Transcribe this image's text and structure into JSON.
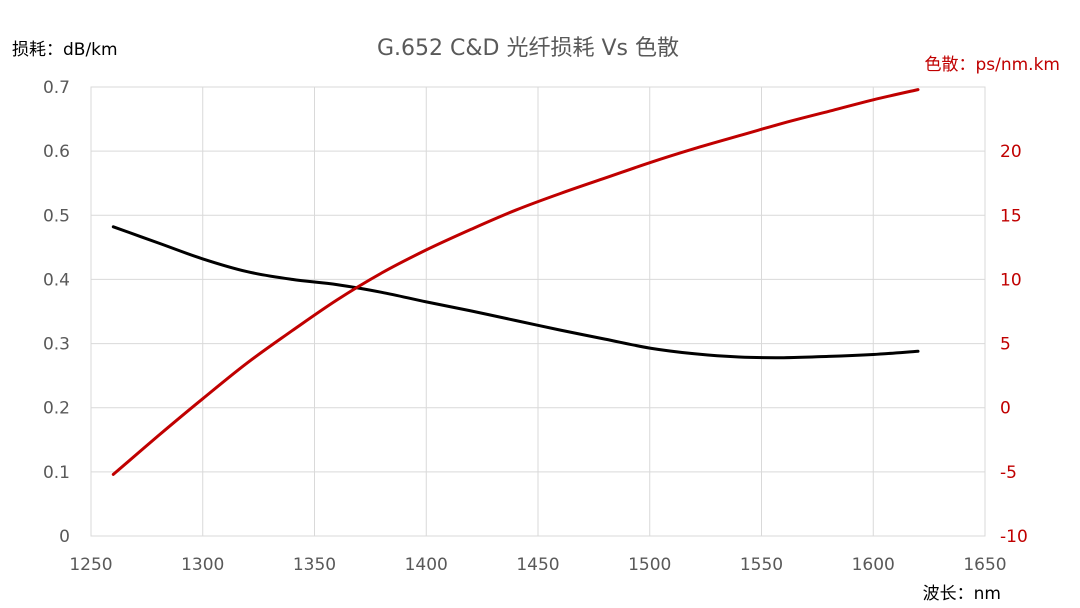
{
  "chart_data": {
    "type": "line",
    "title": "G.652 C&D 光纤损耗 Vs 色散",
    "xlabel": "波长：nm",
    "ylabel_left": "损耗：dB/km",
    "ylabel_right": "色散：ps/nm.km",
    "xlim": [
      1250,
      1650
    ],
    "ylim_left": [
      0,
      0.7
    ],
    "ylim_right": [
      -10,
      25
    ],
    "x_ticks": [
      "1250",
      "1300",
      "1350",
      "1400",
      "1450",
      "1500",
      "1550",
      "1600",
      "1650"
    ],
    "y_left_ticks": [
      "0",
      "0.1",
      "0.2",
      "0.3",
      "0.4",
      "0.5",
      "0.6",
      "0.7"
    ],
    "y_right_ticks": [
      "-10",
      "-5",
      "0",
      "5",
      "10",
      "15",
      "20"
    ],
    "grid": true,
    "series": [
      {
        "axis": "left",
        "color": "#000000",
        "x": [
          1260,
          1280,
          1300,
          1320,
          1340,
          1360,
          1380,
          1400,
          1420,
          1440,
          1460,
          1480,
          1500,
          1520,
          1540,
          1560,
          1580,
          1600,
          1620
        ],
        "y": [
          0.482,
          0.457,
          0.432,
          0.412,
          0.4,
          0.392,
          0.38,
          0.365,
          0.351,
          0.336,
          0.321,
          0.307,
          0.293,
          0.284,
          0.279,
          0.278,
          0.28,
          0.283,
          0.288
        ]
      },
      {
        "axis": "right",
        "color": "#c00000",
        "x": [
          1260,
          1280,
          1300,
          1320,
          1340,
          1360,
          1380,
          1400,
          1420,
          1440,
          1460,
          1480,
          1500,
          1520,
          1540,
          1560,
          1580,
          1600,
          1620
        ],
        "y": [
          -5.2,
          -2.2,
          0.7,
          3.5,
          6.0,
          8.4,
          10.5,
          12.3,
          13.9,
          15.4,
          16.7,
          17.9,
          19.1,
          20.2,
          21.2,
          22.2,
          23.1,
          24.0,
          24.8
        ]
      }
    ]
  }
}
